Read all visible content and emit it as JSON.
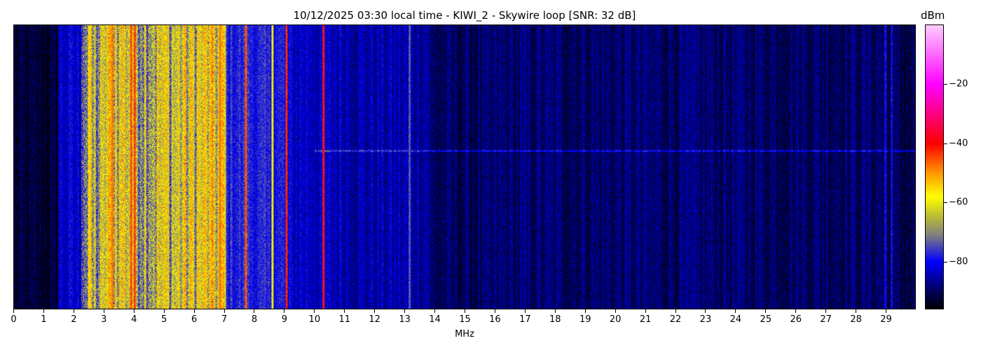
{
  "chart_data": {
    "type": "heatmap",
    "title": "10/12/2025 03:30 local time - KIWI_2 - Skywire loop [SNR: 32 dB]",
    "xlabel": "MHz",
    "ylabel": "",
    "xlim": [
      0,
      30
    ],
    "xticks": [
      "0",
      "1",
      "2",
      "3",
      "4",
      "5",
      "6",
      "7",
      "8",
      "9",
      "10",
      "11",
      "12",
      "13",
      "14",
      "15",
      "16",
      "17",
      "18",
      "19",
      "20",
      "21",
      "22",
      "23",
      "24",
      "25",
      "26",
      "27",
      "28",
      "29"
    ],
    "colorbar": {
      "label": "dBm",
      "range": [
        -96,
        0
      ],
      "ticks": [
        -20,
        -40,
        -60,
        -80
      ],
      "tick_labels": [
        "−20",
        "−40",
        "−60",
        "−80"
      ],
      "colormap": [
        {
          "v": -96,
          "color": "#000000"
        },
        {
          "v": -88,
          "color": "#00007a"
        },
        {
          "v": -80,
          "color": "#0000ff"
        },
        {
          "v": -71,
          "color": "#808080"
        },
        {
          "v": -65,
          "color": "#b8b83a"
        },
        {
          "v": -58,
          "color": "#ffff00"
        },
        {
          "v": -50,
          "color": "#ff9900"
        },
        {
          "v": -40,
          "color": "#ff0000"
        },
        {
          "v": -20,
          "color": "#ff00ff"
        },
        {
          "v": 0,
          "color": "#ffccff"
        }
      ]
    },
    "band_mean_dbm": [
      {
        "from": 0,
        "to": 1.4,
        "level": -93
      },
      {
        "from": 1.4,
        "to": 2.2,
        "level": -83
      },
      {
        "from": 2.2,
        "to": 3.0,
        "level": -68
      },
      {
        "from": 3.0,
        "to": 4.0,
        "level": -60
      },
      {
        "from": 4.0,
        "to": 5.0,
        "level": -63
      },
      {
        "from": 5.0,
        "to": 6.0,
        "level": -63
      },
      {
        "from": 6.0,
        "to": 7.0,
        "level": -61
      },
      {
        "from": 7.0,
        "to": 8.0,
        "level": -78
      },
      {
        "from": 8.0,
        "to": 9.0,
        "level": -79
      },
      {
        "from": 9.0,
        "to": 10.0,
        "level": -83
      },
      {
        "from": 10.0,
        "to": 11.3,
        "level": -84
      },
      {
        "from": 11.3,
        "to": 13.8,
        "level": -85
      },
      {
        "from": 13.8,
        "to": 16.0,
        "level": -90
      },
      {
        "from": 16.0,
        "to": 29.0,
        "level": -89
      },
      {
        "from": 29.0,
        "to": 30.0,
        "level": -91
      }
    ],
    "carriers_mhz_dbm": [
      [
        2.5,
        -55
      ],
      [
        3.25,
        -48
      ],
      [
        3.9,
        -45
      ],
      [
        4.0,
        -45
      ],
      [
        5.65,
        -55
      ],
      [
        6.85,
        -48
      ],
      [
        7.7,
        -45
      ],
      [
        8.6,
        -60
      ],
      [
        9.05,
        -42
      ],
      [
        10.3,
        -40
      ],
      [
        13.15,
        -74
      ],
      [
        29.0,
        -80
      ],
      [
        29.2,
        -80
      ]
    ]
  }
}
